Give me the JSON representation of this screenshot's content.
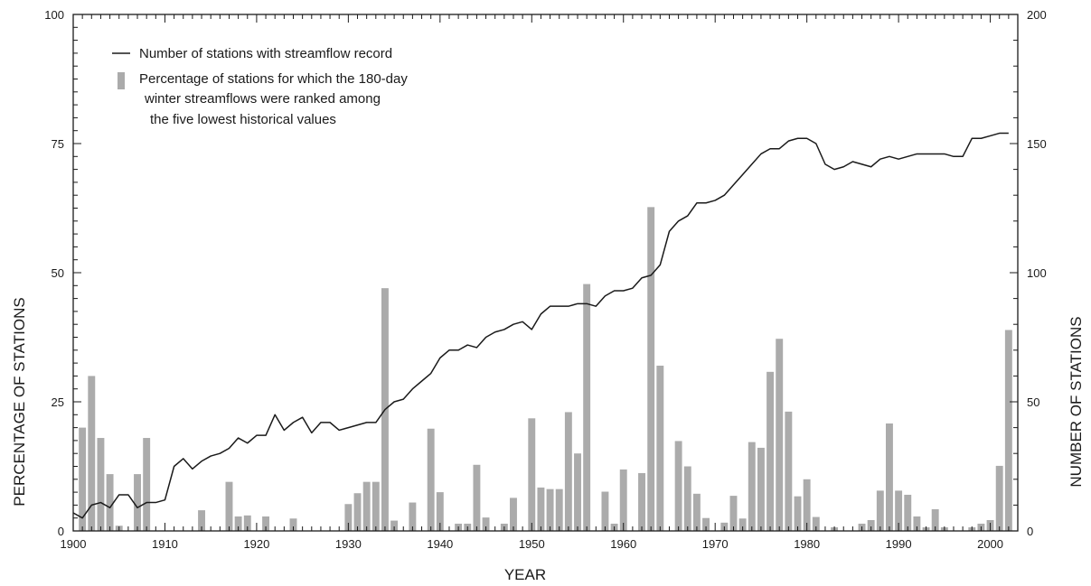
{
  "chart_data": {
    "type": "bar",
    "xlabel": "YEAR",
    "ylabel_left": "PERCENTAGE OF STATIONS",
    "ylabel_right": "NUMBER OF STATIONS",
    "xlim": [
      1900,
      2003
    ],
    "ylim_left": [
      0,
      100
    ],
    "ylim_right": [
      0,
      200
    ],
    "x_ticks": [
      1900,
      1910,
      1920,
      1930,
      1940,
      1950,
      1960,
      1970,
      1980,
      1990,
      2000
    ],
    "y_ticks_left": [
      0,
      25,
      50,
      75,
      100
    ],
    "y_ticks_right": [
      0,
      50,
      100,
      150,
      200
    ],
    "legend": {
      "position": "top-left",
      "line_label": "Number of stations with streamflow record",
      "bar_label_lines": [
        "Percentage of stations for which the 180-day",
        "winter streamflows were ranked among",
        "the five lowest historical values"
      ]
    },
    "colors": {
      "bars": "#ababab",
      "line": "#1a1a1a",
      "axes": "#1a1a1a"
    },
    "bars": {
      "name": "Percentage of stations for which the 180-day winter streamflows were ranked among the five lowest historical values",
      "axis": "left",
      "x": [
        1901,
        1902,
        1903,
        1904,
        1905,
        1907,
        1908,
        1914,
        1917,
        1918,
        1919,
        1921,
        1924,
        1930,
        1931,
        1932,
        1933,
        1934,
        1935,
        1937,
        1939,
        1940,
        1942,
        1943,
        1944,
        1945,
        1947,
        1948,
        1950,
        1951,
        1952,
        1953,
        1954,
        1955,
        1956,
        1958,
        1959,
        1960,
        1962,
        1963,
        1964,
        1966,
        1967,
        1968,
        1969,
        1971,
        1972,
        1973,
        1974,
        1975,
        1976,
        1977,
        1978,
        1979,
        1980,
        1981,
        1983,
        1986,
        1987,
        1988,
        1989,
        1990,
        1991,
        1992,
        1993,
        1994,
        1995,
        1998,
        1999,
        2000,
        2001,
        2002
      ],
      "values": [
        20,
        30,
        18,
        11,
        1,
        11,
        18,
        4,
        9.5,
        2.8,
        3,
        2.8,
        2.4,
        5.2,
        7.3,
        9.5,
        9.5,
        47,
        2,
        5.5,
        19.8,
        7.5,
        1.4,
        1.4,
        12.8,
        2.6,
        1.4,
        6.4,
        21.8,
        8.4,
        8.1,
        8.1,
        23,
        15,
        47.8,
        7.6,
        1.4,
        11.9,
        11.2,
        62.7,
        32,
        17.4,
        12.5,
        7.2,
        2.5,
        1.6,
        6.8,
        2.4,
        17.2,
        16.1,
        30.8,
        37.2,
        23.1,
        6.7,
        10,
        2.7,
        0.7,
        1.4,
        2.1,
        7.8,
        20.8,
        7.8,
        7,
        2.8,
        0.7,
        4.2,
        0.7,
        0.7,
        1.4,
        2.1,
        12.6,
        38.9
      ]
    },
    "line": {
      "name": "Number of stations with streamflow record",
      "axis": "right",
      "x": [
        1900,
        1901,
        1902,
        1903,
        1904,
        1905,
        1906,
        1907,
        1908,
        1909,
        1910,
        1911,
        1912,
        1913,
        1914,
        1915,
        1916,
        1917,
        1918,
        1919,
        1920,
        1921,
        1922,
        1923,
        1924,
        1925,
        1926,
        1927,
        1928,
        1929,
        1930,
        1931,
        1932,
        1933,
        1934,
        1935,
        1936,
        1937,
        1938,
        1939,
        1940,
        1941,
        1942,
        1943,
        1944,
        1945,
        1946,
        1947,
        1948,
        1949,
        1950,
        1951,
        1952,
        1953,
        1954,
        1955,
        1956,
        1957,
        1958,
        1959,
        1960,
        1961,
        1962,
        1963,
        1964,
        1965,
        1966,
        1967,
        1968,
        1969,
        1970,
        1971,
        1972,
        1973,
        1974,
        1975,
        1976,
        1977,
        1978,
        1979,
        1980,
        1981,
        1982,
        1983,
        1984,
        1985,
        1986,
        1987,
        1988,
        1989,
        1990,
        1991,
        1992,
        1993,
        1994,
        1995,
        1996,
        1997,
        1998,
        1999,
        2000,
        2001,
        2002
      ],
      "values": [
        7,
        5,
        10,
        11,
        9,
        14,
        14,
        9,
        11,
        11,
        12,
        25,
        28,
        24,
        27,
        29,
        30,
        32,
        36,
        34,
        37,
        37,
        45,
        39,
        42,
        44,
        38,
        42,
        42,
        39,
        40,
        41,
        42,
        42,
        47,
        50,
        51,
        55,
        58,
        61,
        67,
        70,
        70,
        72,
        71,
        75,
        77,
        78,
        80,
        81,
        78,
        84,
        87,
        87,
        87,
        88,
        88,
        87,
        91,
        93,
        93,
        94,
        98,
        99,
        103,
        116,
        120,
        122,
        127,
        127,
        128,
        130,
        134,
        138,
        142,
        146,
        148,
        148,
        151,
        152,
        152,
        150,
        142,
        140,
        141,
        143,
        142,
        141,
        144,
        145,
        144,
        145,
        146,
        146,
        146,
        146,
        145,
        145,
        152,
        152,
        153,
        154,
        154
      ]
    }
  }
}
